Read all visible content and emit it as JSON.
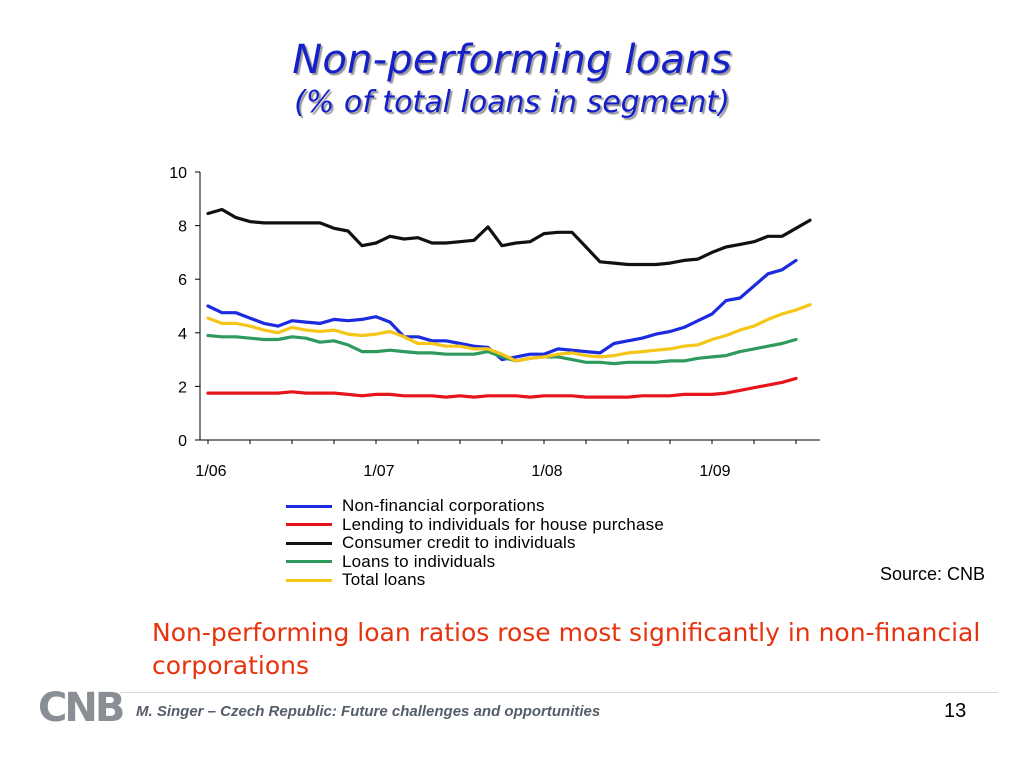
{
  "slide": {
    "title": "Non-performing loans",
    "subtitle": "(% of total loans in segment)",
    "source": "Source: CNB",
    "takeaway": "Non-performing loan ratios rose most significantly in non-financial corporations",
    "footer": "M. Singer – Czech Republic: Future challenges and opportunities",
    "page_number": "13",
    "logo": "CNB"
  },
  "chart_data": {
    "type": "line",
    "x_tick_labels": [
      "1/06",
      "1/07",
      "1/08",
      "1/09"
    ],
    "x_ticks_at_index": [
      0,
      12,
      24,
      36
    ],
    "ylim": [
      0,
      10
    ],
    "y_ticks": [
      0,
      2,
      4,
      6,
      8,
      10
    ],
    "grid": false,
    "legend_position": "bottom",
    "series": [
      {
        "name": "Non-financial corporations",
        "color": "#1a2be0",
        "values": [
          5.0,
          4.75,
          4.75,
          4.55,
          4.35,
          4.25,
          4.45,
          4.4,
          4.35,
          4.5,
          4.45,
          4.5,
          4.6,
          4.4,
          3.85,
          3.85,
          3.7,
          3.7,
          3.6,
          3.5,
          3.45,
          3.0,
          3.1,
          3.2,
          3.2,
          3.4,
          3.35,
          3.3,
          3.25,
          3.6,
          3.7,
          3.8,
          3.95,
          4.05,
          4.2,
          4.45,
          4.7,
          5.2,
          5.3,
          5.75,
          6.2,
          6.35,
          6.7
        ]
      },
      {
        "name": "Lending to individuals for house purchase",
        "color": "#e8141c",
        "values": [
          1.75,
          1.75,
          1.75,
          1.75,
          1.75,
          1.75,
          1.8,
          1.75,
          1.75,
          1.75,
          1.7,
          1.65,
          1.7,
          1.7,
          1.65,
          1.65,
          1.65,
          1.6,
          1.65,
          1.6,
          1.65,
          1.65,
          1.65,
          1.6,
          1.65,
          1.65,
          1.65,
          1.6,
          1.6,
          1.6,
          1.6,
          1.65,
          1.65,
          1.65,
          1.7,
          1.7,
          1.7,
          1.75,
          1.85,
          1.95,
          2.05,
          2.15,
          2.3
        ]
      },
      {
        "name": "Consumer credit to individuals",
        "color": "#111111",
        "values": [
          8.45,
          8.6,
          8.3,
          8.15,
          8.1,
          8.1,
          8.1,
          8.1,
          8.1,
          7.9,
          7.8,
          7.25,
          7.35,
          7.6,
          7.5,
          7.55,
          7.35,
          7.35,
          7.4,
          7.45,
          7.95,
          7.25,
          7.35,
          7.4,
          7.7,
          7.75,
          7.75,
          7.2,
          6.65,
          6.6,
          6.55,
          6.55,
          6.55,
          6.6,
          6.7,
          6.75,
          7.0,
          7.2,
          7.3,
          7.4,
          7.6,
          7.6,
          7.9,
          8.2
        ]
      },
      {
        "name": "Loans to individuals",
        "color": "#2e9a5e",
        "values": [
          3.9,
          3.85,
          3.85,
          3.8,
          3.75,
          3.75,
          3.85,
          3.8,
          3.65,
          3.7,
          3.55,
          3.3,
          3.3,
          3.35,
          3.3,
          3.25,
          3.25,
          3.2,
          3.2,
          3.2,
          3.3,
          3.1,
          2.95,
          3.05,
          3.1,
          3.1,
          3.0,
          2.9,
          2.9,
          2.85,
          2.9,
          2.9,
          2.9,
          2.95,
          2.95,
          3.05,
          3.1,
          3.15,
          3.3,
          3.4,
          3.5,
          3.6,
          3.75
        ]
      },
      {
        "name": "Total loans",
        "color": "#f5c518",
        "values": [
          4.55,
          4.35,
          4.35,
          4.25,
          4.1,
          4.0,
          4.2,
          4.1,
          4.05,
          4.1,
          3.95,
          3.9,
          3.95,
          4.05,
          3.85,
          3.6,
          3.6,
          3.5,
          3.5,
          3.4,
          3.4,
          3.2,
          2.95,
          3.05,
          3.1,
          3.2,
          3.25,
          3.15,
          3.1,
          3.15,
          3.25,
          3.3,
          3.35,
          3.4,
          3.5,
          3.55,
          3.75,
          3.9,
          4.1,
          4.25,
          4.5,
          4.7,
          4.85,
          5.05
        ]
      }
    ]
  }
}
